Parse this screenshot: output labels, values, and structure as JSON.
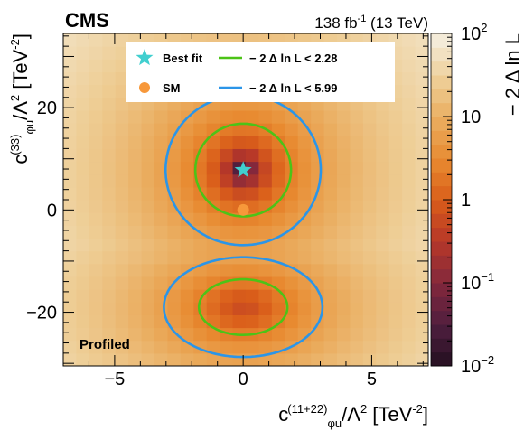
{
  "chart_data": {
    "type": "heatmap",
    "experiment": "CMS",
    "lumi": "138 fb",
    "lumi_sup": "-1",
    "energy": " (13 TeV)",
    "annotation": "Profiled",
    "xlabel": {
      "base": "c",
      "sub": "φu",
      "sup": "(11+22)",
      "rest": "/Λ",
      "rest_sup": "2",
      "unit": " [TeV",
      "unit_sup": "-2",
      "unit_end": "]"
    },
    "ylabel": {
      "base": "c",
      "sub": "φu",
      "sup": "(33)",
      "rest": "/Λ",
      "rest_sup": "2",
      "unit": " [TeV",
      "unit_sup": "-2",
      "unit_end": "]"
    },
    "zlabel": "− 2 Δ ln L",
    "xlim": [
      -7,
      7.2
    ],
    "ylim": [
      -30.5,
      34.5
    ],
    "x_ticks": [
      {
        "value": -5,
        "label": "−5"
      },
      {
        "value": 0,
        "label": "0"
      },
      {
        "value": 5,
        "label": "5"
      }
    ],
    "y_ticks": [
      {
        "value": -20,
        "label": "−20"
      },
      {
        "value": 0,
        "label": "0"
      },
      {
        "value": 20,
        "label": "20"
      }
    ],
    "z_scale": "log",
    "zlim": [
      0.01,
      100
    ],
    "z_ticks": [
      {
        "value": 0.01,
        "base": "10",
        "exp": "−2"
      },
      {
        "value": 0.1,
        "base": "10",
        "exp": "−1"
      },
      {
        "value": 1,
        "base": "1",
        "exp": ""
      },
      {
        "value": 10,
        "base": "10",
        "exp": ""
      },
      {
        "value": 100,
        "base": "10",
        "exp": "2"
      }
    ],
    "best_fit": {
      "x": 0.0,
      "y": 7.8,
      "label": "Best fit"
    },
    "sm_point": {
      "x": 0.0,
      "y": 0.0,
      "label": "SM"
    },
    "contours": [
      {
        "label": "− 2  Δ ln L < 2.28",
        "color": "#4cc317"
      },
      {
        "label": "− 2  Δ ln L < 5.99",
        "color": "#2b95e8"
      }
    ],
    "colors": {
      "best_fit": "#41cfcf",
      "sm": "#f7983a",
      "contour_68": "#4cc317",
      "contour_95": "#2b95e8"
    }
  }
}
